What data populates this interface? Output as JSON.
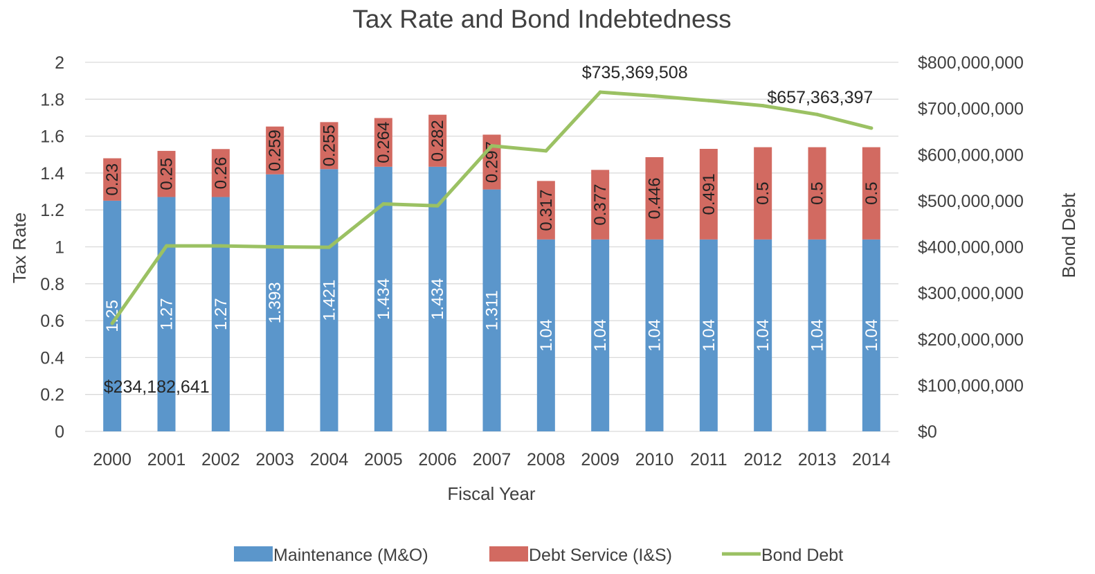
{
  "chart_data": {
    "type": "bar",
    "title": "Tax Rate and Bond Indebtedness",
    "xlabel": "Fiscal Year",
    "ylabel": "Tax Rate",
    "y2label": "Bond Debt",
    "stacked": true,
    "ylim": [
      0,
      2
    ],
    "y2lim": [
      0,
      800000000
    ],
    "y_ticks": [
      "0",
      "0.2",
      "0.4",
      "0.6",
      "0.8",
      "1",
      "1.2",
      "1.4",
      "1.6",
      "1.8",
      "2"
    ],
    "y2_ticks": [
      "$0",
      "$100,000,000",
      "$200,000,000",
      "$300,000,000",
      "$400,000,000",
      "$500,000,000",
      "$600,000,000",
      "$700,000,000",
      "$800,000,000"
    ],
    "grid": true,
    "legend_position": "bottom",
    "categories": [
      "2000",
      "2001",
      "2002",
      "2003",
      "2004",
      "2005",
      "2006",
      "2007",
      "2008",
      "2009",
      "2010",
      "2011",
      "2012",
      "2013",
      "2014"
    ],
    "series": [
      {
        "name": "Maintenance (M&O)",
        "type": "bar",
        "axis": "left",
        "color": "#5B96CB",
        "label_color": "#ffffff",
        "values": [
          1.25,
          1.27,
          1.27,
          1.393,
          1.421,
          1.434,
          1.434,
          1.311,
          1.04,
          1.04,
          1.04,
          1.04,
          1.04,
          1.04,
          1.04
        ],
        "labels": [
          "1.25",
          "1.27",
          "1.27",
          "1.393",
          "1.421",
          "1.434",
          "1.434",
          "1.311",
          "1.04",
          "1.04",
          "1.04",
          "1.04",
          "1.04",
          "1.04",
          "1.04"
        ]
      },
      {
        "name": "Debt Service (I&S)",
        "type": "bar",
        "axis": "left",
        "color": "#D26A61",
        "label_color": "#222222",
        "values": [
          0.23,
          0.25,
          0.26,
          0.259,
          0.255,
          0.264,
          0.282,
          0.297,
          0.317,
          0.377,
          0.446,
          0.491,
          0.5,
          0.5,
          0.5
        ],
        "labels": [
          "0.23",
          "0.25",
          "0.26",
          "0.259",
          "0.255",
          "0.264",
          "0.282",
          "0.297",
          "0.317",
          "0.377",
          "0.446",
          "0.491",
          "0.5",
          "0.5",
          "0.5"
        ]
      },
      {
        "name": "Bond Debt",
        "type": "line",
        "axis": "right",
        "color": "#9BC163",
        "values": [
          234182641,
          402000000,
          402000000,
          400000000,
          399000000,
          493000000,
          489000000,
          619000000,
          608000000,
          735369508,
          727000000,
          717000000,
          706000000,
          687000000,
          657363397
        ],
        "point_labels": [
          {
            "index": 0,
            "text": "$234,182,641"
          },
          {
            "index": 9,
            "text": "$735,369,508"
          },
          {
            "index": 14,
            "text": "$657,363,397"
          }
        ]
      }
    ]
  }
}
